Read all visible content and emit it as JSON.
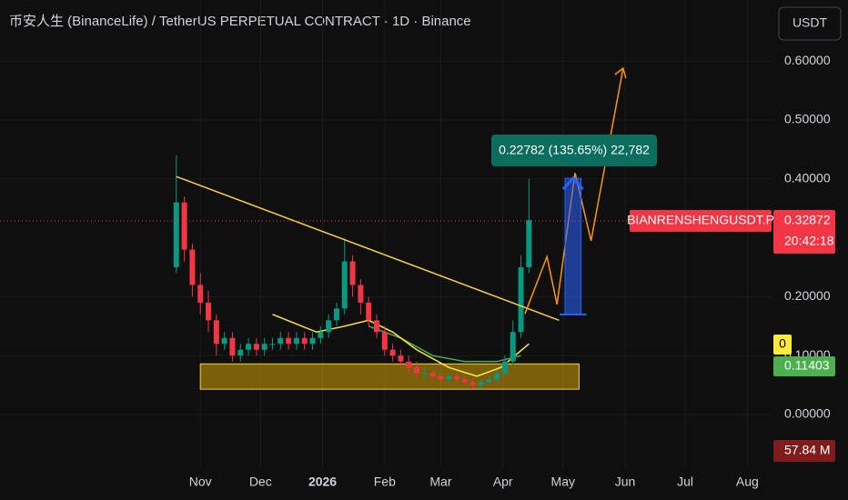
{
  "header": {
    "title": "币安人生 (BinanceLife) / TetherUS PERPETUAL CONTRACT · 1D · Binance",
    "currency": "USDT"
  },
  "chart_data": {
    "type": "candlestick",
    "x": [
      0,
      4,
      8,
      12,
      16,
      20,
      24,
      28,
      32,
      36,
      40,
      44,
      48,
      52,
      56,
      60,
      64,
      68,
      72,
      76,
      80,
      84,
      88,
      92,
      96,
      100,
      104,
      108,
      112,
      116,
      120,
      124,
      128,
      132,
      136,
      140,
      144,
      148,
      152,
      156,
      160,
      164,
      168,
      172,
      176
    ],
    "open": [
      0.25,
      0.36,
      0.28,
      0.22,
      0.19,
      0.16,
      0.12,
      0.13,
      0.1,
      0.11,
      0.12,
      0.11,
      0.12,
      0.12,
      0.13,
      0.12,
      0.13,
      0.12,
      0.13,
      0.14,
      0.16,
      0.18,
      0.26,
      0.22,
      0.19,
      0.16,
      0.14,
      0.11,
      0.1,
      0.09,
      0.08,
      0.07,
      0.07,
      0.065,
      0.06,
      0.065,
      0.06,
      0.055,
      0.05,
      0.055,
      0.06,
      0.07,
      0.09,
      0.14,
      0.25
    ],
    "high": [
      0.44,
      0.37,
      0.29,
      0.24,
      0.21,
      0.17,
      0.14,
      0.14,
      0.12,
      0.13,
      0.13,
      0.13,
      0.13,
      0.14,
      0.14,
      0.14,
      0.14,
      0.14,
      0.15,
      0.17,
      0.19,
      0.3,
      0.27,
      0.23,
      0.2,
      0.17,
      0.15,
      0.12,
      0.11,
      0.1,
      0.09,
      0.08,
      0.075,
      0.07,
      0.07,
      0.07,
      0.065,
      0.06,
      0.06,
      0.065,
      0.075,
      0.1,
      0.16,
      0.27,
      0.4
    ],
    "low": [
      0.24,
      0.26,
      0.2,
      0.17,
      0.14,
      0.1,
      0.11,
      0.09,
      0.09,
      0.1,
      0.1,
      0.1,
      0.11,
      0.11,
      0.11,
      0.11,
      0.11,
      0.11,
      0.12,
      0.13,
      0.15,
      0.17,
      0.2,
      0.17,
      0.15,
      0.13,
      0.1,
      0.09,
      0.08,
      0.07,
      0.06,
      0.06,
      0.06,
      0.055,
      0.055,
      0.055,
      0.05,
      0.045,
      0.045,
      0.05,
      0.055,
      0.065,
      0.085,
      0.13,
      0.24
    ],
    "close": [
      0.36,
      0.28,
      0.22,
      0.19,
      0.16,
      0.12,
      0.13,
      0.1,
      0.11,
      0.12,
      0.11,
      0.12,
      0.12,
      0.13,
      0.12,
      0.13,
      0.12,
      0.13,
      0.14,
      0.16,
      0.18,
      0.26,
      0.22,
      0.19,
      0.16,
      0.14,
      0.11,
      0.1,
      0.09,
      0.08,
      0.07,
      0.07,
      0.065,
      0.06,
      0.065,
      0.06,
      0.055,
      0.05,
      0.055,
      0.06,
      0.07,
      0.09,
      0.14,
      0.25,
      0.33
    ],
    "up_color": "#089981",
    "down_color": "#f23645",
    "xlim": [
      -88,
      298
    ],
    "xticks": [
      {
        "value": 12,
        "label": "Nov"
      },
      {
        "value": 42,
        "label": "Dec"
      },
      {
        "value": 73,
        "label": "2026"
      },
      {
        "value": 104,
        "label": "Feb"
      },
      {
        "value": 132,
        "label": "Mar"
      },
      {
        "value": 163,
        "label": "Apr"
      },
      {
        "value": 193,
        "label": "May"
      },
      {
        "value": 224,
        "label": "Jun"
      },
      {
        "value": 254,
        "label": "Jul"
      },
      {
        "value": 285,
        "label": "Aug"
      }
    ],
    "ylim": [
      -0.1,
      0.7
    ],
    "yticks": [
      {
        "value": 0.6,
        "label": "0.60000"
      },
      {
        "value": 0.5,
        "label": "0.50000"
      },
      {
        "value": 0.4,
        "label": "0.40000"
      },
      {
        "value": 0.2,
        "label": "0.20000"
      },
      {
        "value": 0.1,
        "label": "0.10000"
      },
      {
        "value": 0,
        "label": "0.00000"
      }
    ],
    "grid": true,
    "last_price": 0.32872,
    "symbol": "BIANRENSHENGUSDT.P",
    "countdown": "20:42:18",
    "indicator_zero": "0",
    "indicator_value": 0.11403,
    "volume_label": "57.84 M",
    "measure_label": "0.22782 (135.65%) 22,782",
    "trendline": {
      "x": [
        0,
        191
      ],
      "y": [
        0.404,
        0.16
      ]
    },
    "zone": {
      "x": [
        12,
        201
      ],
      "y": [
        0.043,
        0.086
      ]
    },
    "projection": {
      "x": [
        174,
        185,
        190,
        199,
        207,
        223
      ],
      "y": [
        0.171,
        0.268,
        0.187,
        0.41,
        0.295,
        0.588
      ]
    },
    "position": {
      "x": [
        194,
        202
      ],
      "y": [
        0.17,
        0.401
      ]
    },
    "ma_yellow": {
      "x": [
        48,
        70,
        84,
        96,
        108,
        120,
        136,
        150,
        162,
        176
      ],
      "y": [
        0.17,
        0.14,
        0.15,
        0.16,
        0.14,
        0.11,
        0.08,
        0.065,
        0.08,
        0.12
      ]
    },
    "ma_green": {
      "x": [
        96,
        112,
        128,
        144,
        160,
        172
      ],
      "y": [
        0.15,
        0.13,
        0.1,
        0.09,
        0.09,
        0.1
      ]
    }
  }
}
